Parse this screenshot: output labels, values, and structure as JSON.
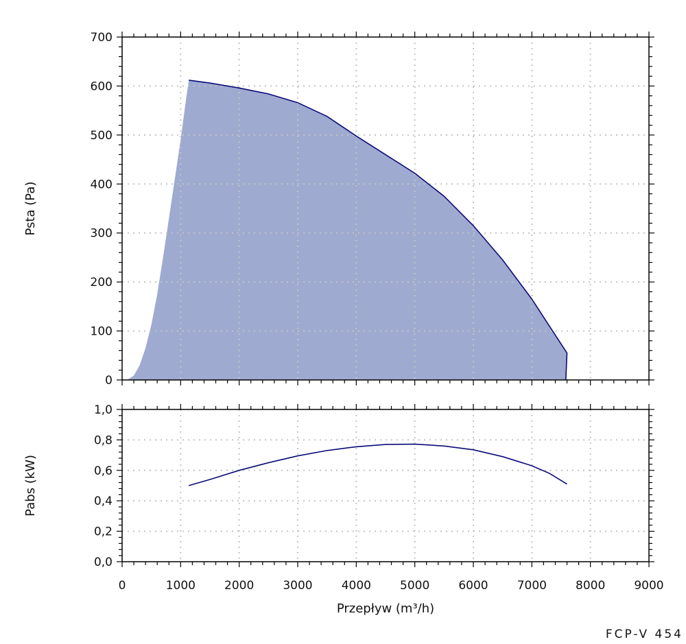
{
  "chart_data": [
    {
      "type": "area",
      "ylabel": "Psta (Pa)",
      "xlim": [
        0,
        9000
      ],
      "ylim": [
        0,
        700
      ],
      "x_ticks": [
        0,
        1000,
        2000,
        3000,
        4000,
        5000,
        6000,
        7000,
        8000,
        9000
      ],
      "y_ticks": [
        0,
        100,
        200,
        300,
        400,
        500,
        600,
        700
      ],
      "y_tick_labels": [
        "0",
        "100",
        "200",
        "300",
        "400",
        "500",
        "600",
        "700"
      ],
      "grid": true,
      "fill_color": "#9eaad0",
      "line_color": "#0a0a78",
      "envelope_left": [
        [
          0,
          0
        ],
        [
          100,
          1
        ],
        [
          200,
          9
        ],
        [
          300,
          30
        ],
        [
          400,
          65
        ],
        [
          500,
          113
        ],
        [
          600,
          175
        ],
        [
          700,
          250
        ],
        [
          800,
          330
        ],
        [
          900,
          410
        ],
        [
          1000,
          490
        ],
        [
          1050,
          535
        ],
        [
          1100,
          580
        ],
        [
          1140,
          612
        ]
      ],
      "curve": [
        [
          1140,
          612
        ],
        [
          1500,
          606
        ],
        [
          2000,
          596
        ],
        [
          2500,
          584
        ],
        [
          3000,
          566
        ],
        [
          3500,
          538
        ],
        [
          4000,
          498
        ],
        [
          4500,
          460
        ],
        [
          5000,
          422
        ],
        [
          5500,
          375
        ],
        [
          6000,
          315
        ],
        [
          6500,
          245
        ],
        [
          7000,
          165
        ],
        [
          7300,
          110
        ],
        [
          7600,
          55
        ],
        [
          7580,
          0
        ]
      ]
    },
    {
      "type": "line",
      "xlabel": "Przepływ (m³/h)",
      "ylabel": "Pabs (kW)",
      "xlim": [
        0,
        9000
      ],
      "ylim": [
        0,
        1.0
      ],
      "x_ticks": [
        0,
        1000,
        2000,
        3000,
        4000,
        5000,
        6000,
        7000,
        8000,
        9000
      ],
      "x_tick_labels": [
        "0",
        "1000",
        "2000",
        "3000",
        "4000",
        "5000",
        "6000",
        "7000",
        "8000",
        "9000"
      ],
      "y_ticks": [
        0,
        0.2,
        0.4,
        0.6,
        0.8,
        1.0
      ],
      "y_tick_labels": [
        "0,0",
        "0,2",
        "0,4",
        "0,6",
        "0,8",
        "1,0"
      ],
      "grid": true,
      "line_color": "#0a0a78",
      "curve": [
        [
          1140,
          0.5
        ],
        [
          1500,
          0.54
        ],
        [
          2000,
          0.6
        ],
        [
          2500,
          0.65
        ],
        [
          3000,
          0.695
        ],
        [
          3500,
          0.73
        ],
        [
          4000,
          0.755
        ],
        [
          4500,
          0.77
        ],
        [
          5000,
          0.772
        ],
        [
          5500,
          0.76
        ],
        [
          6000,
          0.735
        ],
        [
          6500,
          0.69
        ],
        [
          7000,
          0.63
        ],
        [
          7300,
          0.58
        ],
        [
          7600,
          0.51
        ]
      ]
    }
  ],
  "model": "FCP-V 454"
}
